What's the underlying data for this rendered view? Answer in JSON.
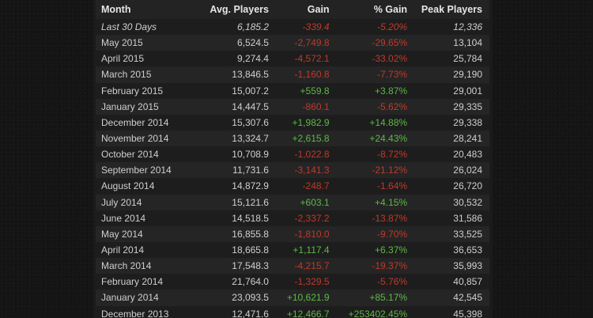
{
  "colors": {
    "negative": "#c0392b",
    "positive": "#5db946"
  },
  "table": {
    "headers": [
      "Month",
      "Avg. Players",
      "Gain",
      "% Gain",
      "Peak Players"
    ],
    "rows": [
      {
        "month": "Last 30 Days",
        "avg": "6,185.2",
        "gain": "-339.4",
        "pct": "-5.20%",
        "peak": "12,336",
        "trend": "neg",
        "italic": true
      },
      {
        "month": "May 2015",
        "avg": "6,524.5",
        "gain": "-2,749.8",
        "pct": "-29.65%",
        "peak": "13,104",
        "trend": "neg"
      },
      {
        "month": "April 2015",
        "avg": "9,274.4",
        "gain": "-4,572.1",
        "pct": "-33.02%",
        "peak": "25,784",
        "trend": "neg"
      },
      {
        "month": "March 2015",
        "avg": "13,846.5",
        "gain": "-1,160.8",
        "pct": "-7.73%",
        "peak": "29,190",
        "trend": "neg"
      },
      {
        "month": "February 2015",
        "avg": "15,007.2",
        "gain": "+559.8",
        "pct": "+3.87%",
        "peak": "29,001",
        "trend": "pos"
      },
      {
        "month": "January 2015",
        "avg": "14,447.5",
        "gain": "-860.1",
        "pct": "-5.62%",
        "peak": "29,335",
        "trend": "neg"
      },
      {
        "month": "December 2014",
        "avg": "15,307.6",
        "gain": "+1,982.9",
        "pct": "+14.88%",
        "peak": "29,338",
        "trend": "pos"
      },
      {
        "month": "November 2014",
        "avg": "13,324.7",
        "gain": "+2,615.8",
        "pct": "+24.43%",
        "peak": "28,241",
        "trend": "pos"
      },
      {
        "month": "October 2014",
        "avg": "10,708.9",
        "gain": "-1,022.8",
        "pct": "-8.72%",
        "peak": "20,483",
        "trend": "neg"
      },
      {
        "month": "September 2014",
        "avg": "11,731.6",
        "gain": "-3,141.3",
        "pct": "-21.12%",
        "peak": "26,024",
        "trend": "neg"
      },
      {
        "month": "August 2014",
        "avg": "14,872.9",
        "gain": "-248.7",
        "pct": "-1.64%",
        "peak": "26,720",
        "trend": "neg"
      },
      {
        "month": "July 2014",
        "avg": "15,121.6",
        "gain": "+603.1",
        "pct": "+4.15%",
        "peak": "30,532",
        "trend": "pos"
      },
      {
        "month": "June 2014",
        "avg": "14,518.5",
        "gain": "-2,337.2",
        "pct": "-13.87%",
        "peak": "31,586",
        "trend": "neg"
      },
      {
        "month": "May 2014",
        "avg": "16,855.8",
        "gain": "-1,810.0",
        "pct": "-9.70%",
        "peak": "33,525",
        "trend": "neg"
      },
      {
        "month": "April 2014",
        "avg": "18,665.8",
        "gain": "+1,117.4",
        "pct": "+6.37%",
        "peak": "36,653",
        "trend": "pos"
      },
      {
        "month": "March 2014",
        "avg": "17,548.3",
        "gain": "-4,215.7",
        "pct": "-19.37%",
        "peak": "35,993",
        "trend": "neg"
      },
      {
        "month": "February 2014",
        "avg": "21,764.0",
        "gain": "-1,329.5",
        "pct": "-5.76%",
        "peak": "40,857",
        "trend": "neg"
      },
      {
        "month": "January 2014",
        "avg": "23,093.5",
        "gain": "+10,621.9",
        "pct": "+85.17%",
        "peak": "42,545",
        "trend": "pos"
      },
      {
        "month": "December 2013",
        "avg": "12,471.6",
        "gain": "+12,466.7",
        "pct": "+253402.45%",
        "peak": "45,398",
        "trend": "pos"
      }
    ]
  }
}
